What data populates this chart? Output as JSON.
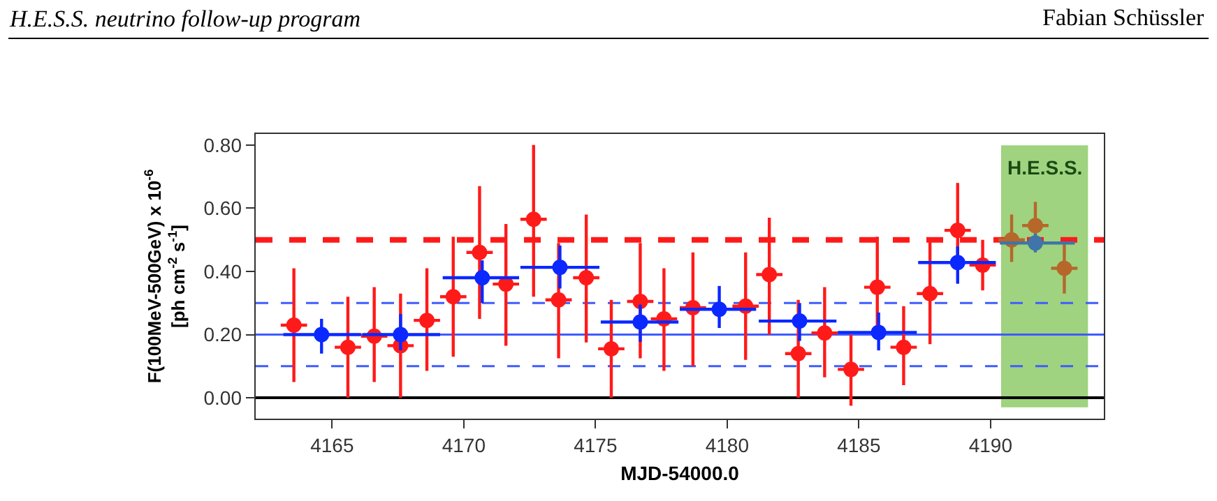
{
  "chart_data": {
    "type": "scatter",
    "title": "H.E.S.S. neutrino follow-up program",
    "annotations": [
      "Fabian Schüssler"
    ],
    "xlabel": "MJD-54000.0",
    "ylabel": "F(100MeV-500GeV) x 10$^{-6}$\n[ph cm$^{-2}$ s$^{-1}$]",
    "xlim": [
      4162.1,
      4194.3
    ],
    "xticks": [
      4165,
      4170,
      4175,
      4180,
      4185,
      4190
    ],
    "ylim": [
      -0.066,
      0.835
    ],
    "yticks": [
      {
        "value": 0,
        "label": "0.00"
      },
      {
        "value": 0.2,
        "label": "0.20"
      },
      {
        "value": 0.4,
        "label": "0.40"
      },
      {
        "value": 0.6,
        "label": "0.60"
      },
      {
        "value": 0.8,
        "label": "0.80"
      }
    ],
    "grid": false,
    "marker": "circle",
    "series": [
      {
        "color": "#ff1a1a",
        "x": [
          4163.55,
          4165.6,
          4166.6,
          4167.6,
          4168.6,
          4169.6,
          4170.6,
          4171.6,
          4172.65,
          4173.6,
          4174.65,
          4175.6,
          4176.7,
          4177.6,
          4178.7,
          4180.7,
          4181.6,
          4182.7,
          4183.7,
          4184.7,
          4185.7,
          4186.7,
          4187.7,
          4188.75,
          4189.7
        ],
        "values": [
          0.23,
          0.16,
          0.195,
          0.165,
          0.245,
          0.32,
          0.46,
          0.36,
          0.565,
          0.31,
          0.38,
          0.155,
          0.305,
          0.25,
          0.285,
          0.29,
          0.39,
          0.14,
          0.205,
          0.09,
          0.35,
          0.16,
          0.33,
          0.53,
          0.42
        ],
        "errors": [
          [
            0.05,
            0.41
          ],
          [
            0.0,
            0.32
          ],
          [
            0.05,
            0.35
          ],
          [
            0.0,
            0.33
          ],
          [
            0.085,
            0.41
          ],
          [
            0.13,
            0.51
          ],
          [
            0.25,
            0.67
          ],
          [
            0.165,
            0.55
          ],
          [
            0.32,
            0.8
          ],
          [
            0.125,
            0.49
          ],
          [
            0.175,
            0.58
          ],
          [
            0.0,
            0.31
          ],
          [
            0.125,
            0.49
          ],
          [
            0.085,
            0.41
          ],
          [
            0.1,
            0.46
          ],
          [
            0.12,
            0.46
          ],
          [
            0.2,
            0.57
          ],
          [
            0.0,
            0.31
          ],
          [
            0.065,
            0.35
          ],
          [
            -0.025,
            0.2
          ],
          [
            0.19,
            0.51
          ],
          [
            0.04,
            0.29
          ],
          [
            0.17,
            0.5
          ],
          [
            0.44,
            0.68
          ],
          [
            0.34,
            0.5
          ]
        ],
        "xerrors": [
          0.5,
          0.5,
          0.5,
          0.5,
          0.5,
          0.5,
          0.5,
          0.5,
          0.5,
          0.5,
          0.5,
          0.5,
          0.5,
          0.5,
          0.5,
          0.5,
          0.5,
          0.5,
          0.5,
          0.5,
          0.5,
          0.5,
          0.5,
          0.5,
          0.5
        ]
      },
      {
        "color": "#b5682a",
        "x": [
          4190.8,
          4191.7,
          4192.8
        ],
        "values": [
          0.5,
          0.545,
          0.41
        ],
        "errors": [
          [
            0.43,
            0.58
          ],
          [
            0.47,
            0.62
          ],
          [
            0.33,
            0.49
          ]
        ],
        "xerrors": [
          0.5,
          0.5,
          0.5
        ]
      },
      {
        "color": "#0a28ff",
        "x": [
          4164.6,
          4167.6,
          4170.7,
          4173.65,
          4176.7,
          4179.7,
          4182.75,
          4185.75,
          4188.75
        ],
        "values": [
          0.2,
          0.2,
          0.38,
          0.413,
          0.24,
          0.28,
          0.243,
          0.207,
          0.428
        ],
        "errors": [
          [
            0.14,
            0.25
          ],
          [
            0.15,
            0.265
          ],
          [
            0.3,
            0.435
          ],
          [
            0.346,
            0.482
          ],
          [
            0.177,
            0.295
          ],
          [
            0.221,
            0.354
          ],
          [
            0.18,
            0.3
          ],
          [
            0.15,
            0.27
          ],
          [
            0.361,
            0.479
          ]
        ],
        "xerrors": [
          [
            4163.15,
            4166.1
          ],
          [
            4166.15,
            4169.1
          ],
          [
            4169.2,
            4172.1
          ],
          [
            4172.15,
            4175.15
          ],
          [
            4175.2,
            4178.15
          ],
          [
            4178.2,
            4181.1
          ],
          [
            4181.2,
            4184.15
          ],
          [
            4184.2,
            4187.2
          ],
          [
            4187.25,
            4190.2
          ]
        ]
      },
      {
        "color": "#3f75a8",
        "x": [
          4191.7
        ],
        "values": [
          0.49
        ],
        "errors": [
          [
            0.46,
            0.52
          ]
        ],
        "xerrors": [
          [
            4190.35,
            4193.2
          ]
        ]
      }
    ],
    "ref_lines": [
      {
        "axis": "y",
        "value": 0,
        "color": "#000000",
        "line_style": "solid"
      },
      {
        "axis": "y",
        "value": 0.2,
        "color": "#3f5cff",
        "line_style": "solid"
      },
      {
        "axis": "y",
        "value": 0.1,
        "color": "#3f5cff",
        "line_style": "dashed"
      },
      {
        "axis": "y",
        "value": 0.3,
        "color": "#3f5cff",
        "line_style": "dashed"
      },
      {
        "axis": "y",
        "value": 0.5,
        "color": "#ff1a1a",
        "line_style": "dashed"
      }
    ],
    "bands": [
      {
        "axis": "x",
        "from": 4190.4,
        "to": 4193.7,
        "label": "H.E.S.S.",
        "color": "#9fd37f"
      }
    ]
  }
}
